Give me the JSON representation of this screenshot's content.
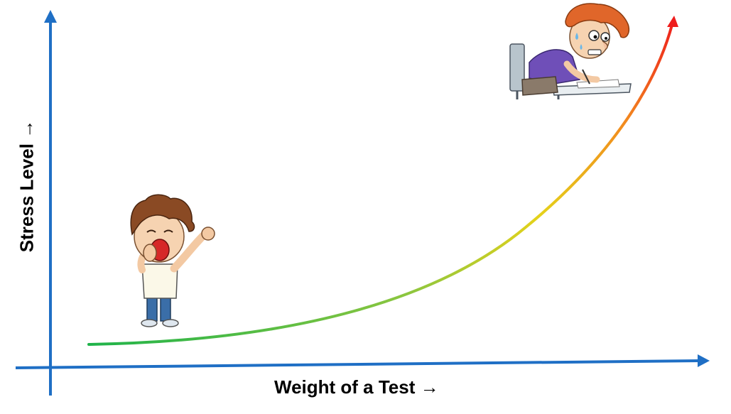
{
  "diagram": {
    "x_axis_label": "Weight of a Test →",
    "y_axis_label": "Stress Level →",
    "colors": {
      "axis": "#1f6fc5",
      "curve_low": "#1fb34a",
      "curve_mid": "#e5d21a",
      "curve_high": "#ee1c1c"
    },
    "figures": [
      {
        "name": "yawning-boy",
        "meaning": "low stress"
      },
      {
        "name": "stressed-student-writing",
        "meaning": "high stress"
      }
    ]
  }
}
